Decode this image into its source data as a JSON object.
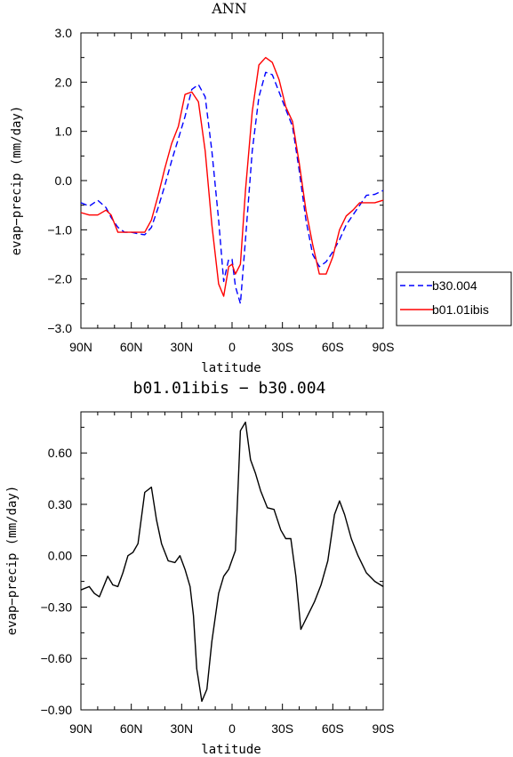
{
  "chart_data": [
    {
      "type": "line",
      "title": "ANN",
      "xlabel": "latitude",
      "ylabel": "evap−precip (mm/day)",
      "xlim": [
        -90,
        90
      ],
      "ylim": [
        -3.0,
        3.0
      ],
      "x_ticks": [
        "90N",
        "60N",
        "30N",
        "0",
        "30S",
        "60S",
        "90S"
      ],
      "y_ticks": [
        "3.0",
        "2.0",
        "1.0",
        "0.0",
        "−1.0",
        "−2.0",
        "−3.0"
      ],
      "y_tick_values": [
        3,
        2,
        1,
        0,
        -1,
        -2,
        -3
      ],
      "legend_position": "right",
      "x": [
        -90,
        -85,
        -80,
        -75,
        -72,
        -68,
        -64,
        -60,
        -56,
        -52,
        -48,
        -44,
        -40,
        -36,
        -32,
        -28,
        -24,
        -20,
        -16,
        -12,
        -8,
        -5,
        -2,
        0,
        2,
        5,
        8,
        12,
        16,
        20,
        24,
        28,
        32,
        36,
        40,
        44,
        48,
        52,
        56,
        60,
        64,
        68,
        72,
        76,
        80,
        85,
        90
      ],
      "series": [
        {
          "name": "b30.004",
          "color": "#0000ff",
          "dash": true,
          "values": [
            -0.45,
            -0.52,
            -0.4,
            -0.55,
            -0.75,
            -0.95,
            -1.05,
            -1.05,
            -1.08,
            -1.1,
            -0.95,
            -0.55,
            -0.1,
            0.4,
            0.85,
            1.3,
            1.85,
            1.95,
            1.7,
            0.6,
            -0.8,
            -2.05,
            -1.6,
            -1.6,
            -2.15,
            -2.5,
            -1.2,
            0.6,
            1.7,
            2.2,
            2.15,
            1.8,
            1.45,
            1.1,
            0.2,
            -0.8,
            -1.5,
            -1.75,
            -1.65,
            -1.45,
            -1.2,
            -0.9,
            -0.7,
            -0.5,
            -0.3,
            -0.28,
            -0.2
          ]
        },
        {
          "name": "b01.01ibis",
          "color": "#ff0000",
          "dash": false,
          "values": [
            -0.65,
            -0.7,
            -0.7,
            -0.6,
            -0.7,
            -1.05,
            -1.05,
            -1.05,
            -1.05,
            -1.05,
            -0.8,
            -0.3,
            0.25,
            0.75,
            1.1,
            1.75,
            1.8,
            1.6,
            0.6,
            -0.9,
            -2.1,
            -2.35,
            -1.75,
            -1.7,
            -1.9,
            -1.7,
            -0.2,
            1.4,
            2.35,
            2.5,
            2.4,
            2.05,
            1.5,
            1.2,
            0.35,
            -0.6,
            -1.3,
            -1.9,
            -1.9,
            -1.55,
            -1.0,
            -0.72,
            -0.6,
            -0.45,
            -0.45,
            -0.45,
            -0.4
          ]
        }
      ]
    },
    {
      "type": "line",
      "title": "b01.01ibis − b30.004",
      "xlabel": "latitude",
      "ylabel": "evap−precip (mm/day)",
      "xlim": [
        -90,
        90
      ],
      "ylim": [
        -0.9,
        0.84
      ],
      "x_ticks": [
        "90N",
        "60N",
        "30N",
        "0",
        "30S",
        "60S",
        "90S"
      ],
      "y_ticks": [
        "0.60",
        "0.30",
        "0.00",
        "−0.30",
        "−0.60",
        "−0.90"
      ],
      "y_tick_values": [
        0.6,
        0.3,
        0.0,
        -0.3,
        -0.6,
        -0.9
      ],
      "x": [
        -90,
        -85,
        -82,
        -79,
        -74,
        -71,
        -68,
        -65,
        -62,
        -59,
        -56,
        -52,
        -48,
        -45,
        -42,
        -38,
        -34,
        -31,
        -28,
        -25,
        -23,
        -21,
        -18,
        -15,
        -12,
        -8,
        -5,
        -2,
        2,
        5,
        8,
        11,
        14,
        17,
        21,
        25,
        29,
        32,
        35,
        38,
        41,
        45,
        49,
        53,
        57,
        61,
        64,
        67,
        71,
        75,
        80,
        85,
        90
      ],
      "series": [
        {
          "name": "",
          "color": "#000000",
          "dash": false,
          "values": [
            -0.2,
            -0.18,
            -0.22,
            -0.24,
            -0.12,
            -0.17,
            -0.18,
            -0.1,
            0.0,
            0.02,
            0.07,
            0.37,
            0.4,
            0.21,
            0.07,
            -0.03,
            -0.04,
            0.0,
            -0.08,
            -0.18,
            -0.35,
            -0.66,
            -0.85,
            -0.78,
            -0.5,
            -0.22,
            -0.12,
            -0.08,
            0.03,
            0.73,
            0.78,
            0.56,
            0.48,
            0.38,
            0.28,
            0.27,
            0.15,
            0.1,
            0.1,
            -0.12,
            -0.43,
            -0.35,
            -0.27,
            -0.17,
            -0.03,
            0.24,
            0.32,
            0.24,
            0.1,
            0.0,
            -0.1,
            -0.15,
            -0.18
          ]
        }
      ]
    }
  ]
}
